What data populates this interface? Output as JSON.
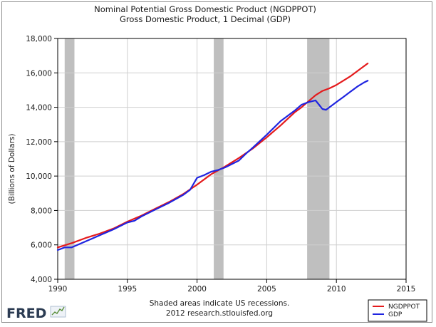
{
  "chart_data": {
    "type": "line",
    "title": "Nominal Potential Gross Domestic Product (NGDPPOT)",
    "subtitle": "Gross Domestic Product, 1 Decimal (GDP)",
    "xlabel": "",
    "ylabel": "(Billions of Dollars)",
    "xlim": [
      1990,
      2015
    ],
    "ylim": [
      4000,
      18000
    ],
    "x_ticks": [
      "1990",
      "1995",
      "2000",
      "2005",
      "2010",
      "2015"
    ],
    "y_ticks": [
      "4,000",
      "6,000",
      "8,000",
      "10,000",
      "12,000",
      "14,000",
      "16,000",
      "18,000"
    ],
    "grid": true,
    "legend_position": "bottom-right",
    "recessions": [
      [
        1990.5,
        1991.2
      ],
      [
        2001.2,
        2001.9
      ],
      [
        2007.9,
        2009.5
      ]
    ],
    "recession_color": "#bfbfbf",
    "series": [
      {
        "name": "NGDPPOT",
        "color": "#e41a1c",
        "x": [
          1990.0,
          1991.0,
          1992.0,
          1993.0,
          1994.0,
          1995.0,
          1996.0,
          1997.0,
          1998.0,
          1999.0,
          2000.0,
          2001.0,
          2002.0,
          2003.0,
          2004.0,
          2005.0,
          2006.0,
          2007.0,
          2007.5,
          2008.0,
          2008.5,
          2009.0,
          2009.5,
          2010.0,
          2010.5,
          2011.0,
          2011.5,
          2012.0,
          2012.25
        ],
        "y": [
          5850,
          6100,
          6400,
          6650,
          6950,
          7350,
          7700,
          8100,
          8500,
          8950,
          9500,
          10100,
          10550,
          11050,
          11600,
          12250,
          12950,
          13700,
          14000,
          14350,
          14700,
          14950,
          15100,
          15300,
          15550,
          15800,
          16100,
          16400,
          16550
        ]
      },
      {
        "name": "GDP",
        "color": "#1f24e0",
        "x": [
          1990.0,
          1990.5,
          1991.0,
          1992.0,
          1993.0,
          1994.0,
          1995.0,
          1995.5,
          1996.0,
          1997.0,
          1998.0,
          1999.0,
          1999.5,
          2000.0,
          2000.5,
          2001.0,
          2001.5,
          2002.0,
          2003.0,
          2003.5,
          2004.0,
          2005.0,
          2006.0,
          2007.0,
          2007.5,
          2008.0,
          2008.5,
          2008.75,
          2009.0,
          2009.25,
          2009.5,
          2010.0,
          2010.5,
          2011.0,
          2011.5,
          2012.0,
          2012.25
        ],
        "y": [
          5700,
          5850,
          5850,
          6200,
          6550,
          6900,
          7300,
          7400,
          7650,
          8050,
          8450,
          8900,
          9200,
          9900,
          10050,
          10250,
          10350,
          10500,
          10900,
          11300,
          11650,
          12400,
          13200,
          13800,
          14150,
          14300,
          14400,
          14150,
          13900,
          13850,
          14000,
          14300,
          14600,
          14900,
          15200,
          15450,
          15550
        ]
      }
    ]
  },
  "footer": {
    "note_line1": "Shaded areas indicate US recessions.",
    "note_line2": "2012 research.stlouisfed.org",
    "logo_text": "FRED"
  }
}
